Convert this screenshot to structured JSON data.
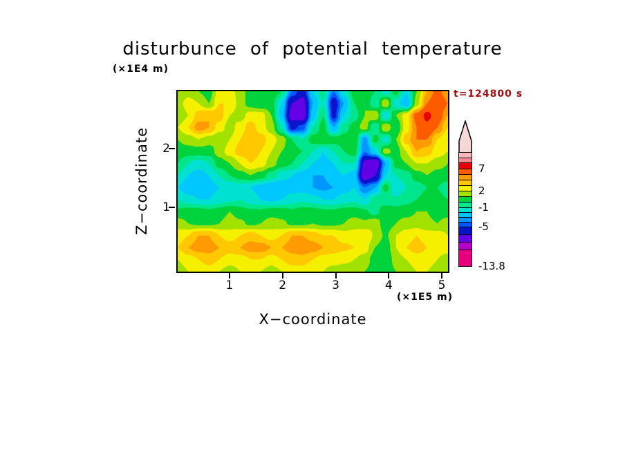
{
  "title": {
    "text": "disturbunce of potential temperature"
  },
  "annotations": {
    "time_label": "t=124800 s",
    "y_unit": "(×1E4 m)",
    "x_unit": "(×1E5 m)"
  },
  "axes": {
    "x_label": "X−coordinate",
    "y_label": "Z−coordinate",
    "x_ticks": [
      "1",
      "2",
      "3",
      "4",
      "5"
    ],
    "y_ticks": [
      "2",
      "1"
    ]
  },
  "colorbar": {
    "arrow_color": "#f6d7d7",
    "labels": [
      {
        "text": "7"
      },
      {
        "text": "2"
      },
      {
        "text": "-1"
      },
      {
        "text": "-5"
      },
      {
        "text": "-13.8"
      }
    ],
    "segments": [
      {
        "color": "#e6007e",
        "h": 24
      },
      {
        "color": "#b400c8",
        "h": 11
      },
      {
        "color": "#6400e6",
        "h": 11
      },
      {
        "color": "#0a14c8",
        "h": 11
      },
      {
        "color": "#0055ff",
        "h": 7
      },
      {
        "color": "#0096ff",
        "h": 7
      },
      {
        "color": "#00c8ff",
        "h": 7
      },
      {
        "color": "#00e1d2",
        "h": 7
      },
      {
        "color": "#00e68c",
        "h": 8
      },
      {
        "color": "#00d23c",
        "h": 8
      },
      {
        "color": "#a0e100",
        "h": 8
      },
      {
        "color": "#f5ef00",
        "h": 8
      },
      {
        "color": "#ffc800",
        "h": 8
      },
      {
        "color": "#ff9b00",
        "h": 8
      },
      {
        "color": "#ff5a00",
        "h": 8
      },
      {
        "color": "#e60000",
        "h": 9
      },
      {
        "color": "#ff8c8c",
        "h": 7
      },
      {
        "color": "#ffb9b9",
        "h": 7
      }
    ]
  },
  "chart_data": {
    "type": "heatmap",
    "subtype": "filled-contour",
    "title": "disturbunce of potential temperature",
    "xlabel": "X−coordinate (×1E5 m)",
    "ylabel": "Z−coordinate (×1E4 m)",
    "time_annotation": "t=124800 s",
    "xlim": [
      0,
      5.2
    ],
    "ylim": [
      0,
      2.8
    ],
    "x_tick_values": [
      1,
      2,
      3,
      4,
      5
    ],
    "y_tick_values": [
      1,
      2
    ],
    "colorbar_tick_labels": [
      7,
      2,
      -1,
      -5,
      -13.8
    ],
    "levels": [
      -13.8,
      -11,
      -9,
      -7,
      -5,
      -4,
      -3,
      -2,
      -1,
      0,
      1,
      2,
      3,
      4,
      5,
      7,
      9,
      11
    ],
    "level_colors": [
      "#e6007e",
      "#b400c8",
      "#6400e6",
      "#0a14c8",
      "#0055ff",
      "#0096ff",
      "#00c8ff",
      "#00e1d2",
      "#00e68c",
      "#00d23c",
      "#a0e100",
      "#f5ef00",
      "#ffc800",
      "#ff9b00",
      "#ff5a00",
      "#e60000",
      "#ff8c8c"
    ],
    "over_color": "#ffb9b9",
    "x": [
      0,
      0.2,
      0.4,
      0.6,
      0.8,
      1.0,
      1.2,
      1.4,
      1.6,
      1.8,
      2.0,
      2.2,
      2.4,
      2.6,
      2.8,
      3.0,
      3.2,
      3.4,
      3.6,
      3.8,
      4.0,
      4.2,
      4.4,
      4.6,
      4.8,
      5.0,
      5.2
    ],
    "z": [
      2.8,
      2.6,
      2.4,
      2.2,
      2.0,
      1.8,
      1.6,
      1.45,
      1.3,
      1.15,
      0.95,
      0.75,
      0.55,
      0.35,
      0.15,
      0
    ],
    "values": [
      [
        1,
        1.5,
        1,
        0.5,
        2.5,
        2.5,
        1.5,
        0.5,
        0.5,
        1,
        0,
        -4,
        -6,
        -2,
        -0.5,
        -4,
        -1.5,
        0.5,
        1,
        0,
        -1.5,
        0.5,
        -2,
        1,
        4,
        5.5,
        4
      ],
      [
        1.5,
        2.5,
        2,
        1,
        3,
        3,
        1.5,
        0.5,
        0,
        0.5,
        -2,
        -7,
        -8,
        -3,
        -1,
        -6,
        -3,
        0,
        1,
        -1,
        2,
        -1.5,
        -3,
        1.5,
        5,
        6.5,
        5
      ],
      [
        1,
        2,
        3.5,
        4,
        3.5,
        2,
        1.5,
        2.5,
        2.5,
        1,
        -2.5,
        -8,
        -8.5,
        -2.5,
        0,
        -5.5,
        -2,
        -0.5,
        1,
        2,
        -2,
        1,
        2.5,
        5.5,
        7.5,
        6,
        4
      ],
      [
        2,
        3,
        4.5,
        4,
        2.5,
        1.5,
        2.5,
        3.5,
        2.5,
        1.5,
        -1,
        -5.5,
        -4.5,
        -1,
        0.5,
        -3,
        -0.5,
        0.5,
        1.5,
        -1,
        2,
        0,
        2.5,
        5,
        6.5,
        5,
        3
      ],
      [
        1,
        1.5,
        2,
        1.5,
        1,
        2,
        3,
        4,
        3.5,
        2.5,
        1.5,
        0,
        -1,
        0.5,
        1,
        0.5,
        0.5,
        1,
        -3.5,
        0.5,
        -1.5,
        1,
        3.5,
        5,
        5,
        3,
        2
      ],
      [
        0.5,
        0.5,
        0.5,
        0.5,
        1.5,
        2.5,
        3.5,
        4,
        3,
        2,
        1,
        0.5,
        0,
        -1,
        -2,
        -1,
        0,
        0.5,
        -4,
        -2,
        1.5,
        0.5,
        2,
        4,
        3.5,
        2.5,
        2
      ],
      [
        0,
        -1,
        -1.5,
        -1,
        0.5,
        1,
        2,
        3,
        2.5,
        1.5,
        0.5,
        0,
        -1,
        -2,
        -2.5,
        -2,
        -1,
        -1,
        -7.5,
        -9,
        -3,
        0.5,
        1,
        2,
        2,
        1.5,
        1
      ],
      [
        -1,
        -2,
        -2.5,
        -2,
        -1,
        0,
        0.5,
        1,
        0.5,
        -0.5,
        -1.5,
        -2,
        -2.5,
        -3,
        -3,
        -2.5,
        -2,
        -2.5,
        -8.5,
        -7,
        -2,
        -1,
        -0.5,
        0.5,
        1,
        0.5,
        0.5
      ],
      [
        -2,
        -3,
        -3,
        -2.5,
        -2,
        -2,
        -1.5,
        -2,
        -2.5,
        -3,
        -3,
        -2.5,
        -2.5,
        -3,
        -3.2,
        -3,
        -2.5,
        -2,
        -4,
        -3,
        0.5,
        -2,
        -1,
        -0.5,
        0,
        0,
        -0.5
      ],
      [
        -1,
        -1.5,
        -2,
        -2,
        -1.5,
        -1.2,
        -1,
        -1.5,
        -2,
        -2.2,
        -2,
        -1.5,
        -1.2,
        -1.5,
        -2,
        -2,
        -1.5,
        -1.2,
        -2,
        -0.5,
        -1,
        -0.8,
        -0.3,
        0,
        0.5,
        0.3,
        0
      ],
      [
        0.2,
        0.5,
        0.5,
        0.2,
        0.5,
        1,
        0.5,
        0.2,
        0.2,
        0.5,
        0.5,
        0.2,
        0.5,
        0.5,
        0.2,
        0.2,
        0.5,
        0.5,
        0.2,
        -0.5,
        1,
        0.5,
        0.5,
        1,
        1,
        0.5,
        0.5
      ],
      [
        1.5,
        1,
        0.8,
        0.8,
        1,
        1.5,
        1.2,
        0.8,
        1,
        1.5,
        1.2,
        0.8,
        0.8,
        1,
        0.8,
        0.8,
        1,
        1.5,
        1.2,
        1.8,
        0.2,
        1,
        1.5,
        1.5,
        1.2,
        1,
        1.5
      ],
      [
        2.5,
        3,
        4,
        4,
        3,
        2.5,
        3,
        3.5,
        3,
        2.5,
        3,
        4,
        4,
        3.5,
        3,
        3,
        2.5,
        2.5,
        3,
        1.8,
        0.8,
        2,
        2.5,
        3,
        2.5,
        2.5,
        2
      ],
      [
        3,
        4,
        4.5,
        4.5,
        4,
        3.5,
        4,
        4.5,
        4.5,
        4,
        4,
        4.5,
        5,
        4.5,
        4,
        3.5,
        3.2,
        3,
        2.5,
        1,
        0.3,
        2,
        3,
        3.5,
        3,
        2.5,
        2.5
      ],
      [
        2,
        2.5,
        3,
        3.5,
        3,
        2.5,
        2.5,
        3,
        3,
        2.5,
        3,
        3.5,
        3.5,
        3,
        2.5,
        2.5,
        2.2,
        2,
        1.5,
        0.5,
        0,
        1.5,
        2,
        2.5,
        2.5,
        2,
        1.5
      ],
      [
        1.5,
        2,
        2,
        2.5,
        2,
        1.5,
        2,
        2,
        2,
        1.5,
        2,
        2.5,
        2.5,
        2,
        2,
        1.5,
        1.5,
        1.5,
        1,
        0.5,
        0.2,
        1,
        1.5,
        2,
        2,
        1.5,
        1
      ]
    ]
  }
}
